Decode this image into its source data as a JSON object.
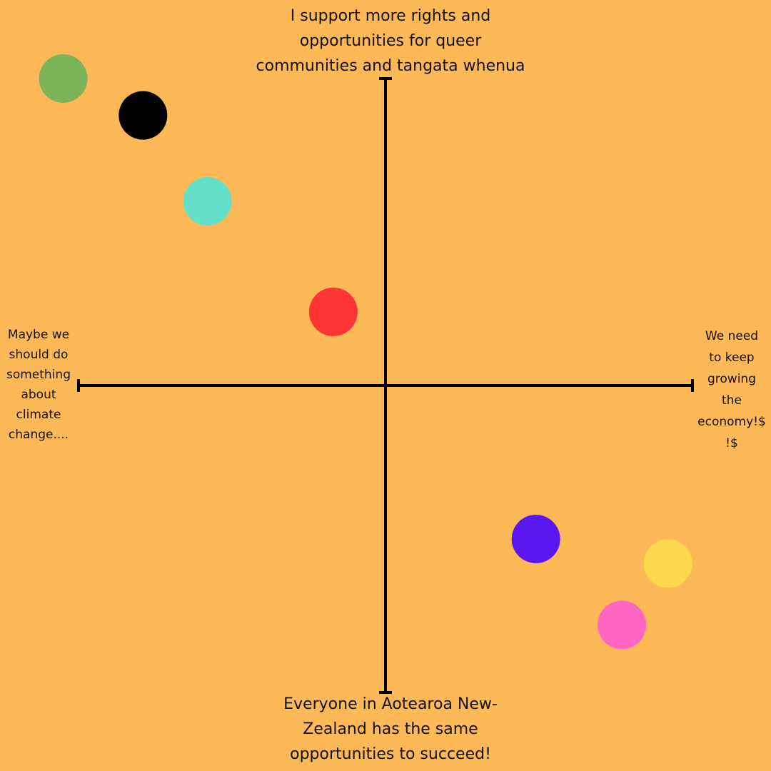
{
  "colors": {
    "background": "#fdb957",
    "axis": "#000000",
    "text": "#111111"
  },
  "labels": {
    "top": "I support more rights and\nopportunities for queer\ncommunities and tangata whenua",
    "bottom": "Everyone in Aotearoa New-\nZealand has the same\nopportunities to succeed!",
    "left": "Maybe we\nshould do\nsomething\nabout\nclimate\nchange....",
    "right": "We need\nto keep\ngrowing\nthe\neconomy!$\n!$"
  },
  "chart_data": {
    "type": "scatter",
    "xlim": [
      -1,
      1
    ],
    "ylim": [
      -1,
      1
    ],
    "points": [
      {
        "color": "#7cb45a",
        "x": -1.05,
        "y": 1.0
      },
      {
        "color": "#000000",
        "x": -0.79,
        "y": 0.88
      },
      {
        "color": "#64e0c9",
        "x": -0.58,
        "y": 0.6
      },
      {
        "color": "#ff3434",
        "x": -0.17,
        "y": 0.24
      },
      {
        "color": "#5b17ef",
        "x": 0.49,
        "y": -0.5
      },
      {
        "color": "#fdd84b",
        "x": 0.92,
        "y": -0.58
      },
      {
        "color": "#ff66c4",
        "x": 0.77,
        "y": -0.78
      }
    ]
  }
}
